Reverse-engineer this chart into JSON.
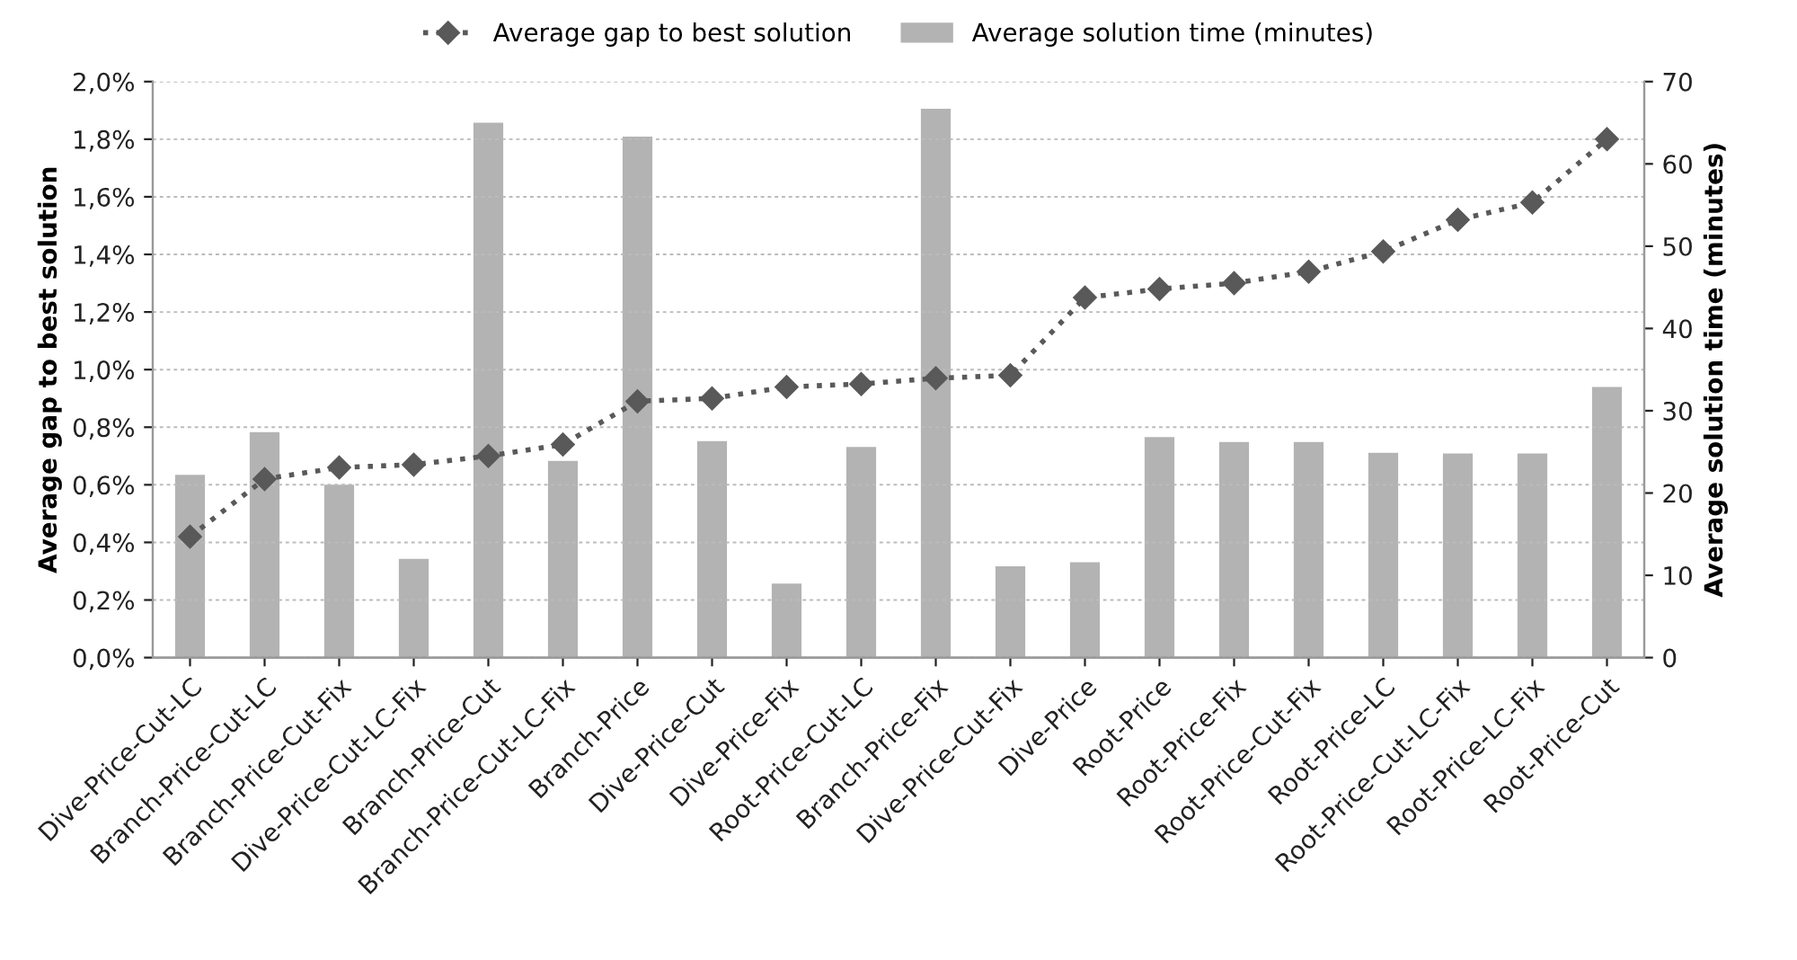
{
  "chart_data": {
    "type": "bar",
    "categories": [
      "Dive-Price-Cut-LC",
      "Branch-Price-Cut-LC",
      "Branch-Price-Cut-Fix",
      "Dive-Price-Cut-LC-Fix",
      "Branch-Price-Cut",
      "Branch-Price-Cut-LC-Fix",
      "Branch-Price",
      "Dive-Price-Cut",
      "Dive-Price-Fix",
      "Root-Price-Cut-LC",
      "Branch-Price-Fix",
      "Dive-Price-Cut-Fix",
      "Dive-Price",
      "Root-Price",
      "Root-Price-Fix",
      "Root-Price-Cut-Fix",
      "Root-Price-LC",
      "Root-Price-Cut-LC-Fix",
      "Root-Price-LC-Fix",
      "Root-Price-Cut"
    ],
    "series": [
      {
        "name": "Average gap to best solution",
        "type": "line",
        "color": "#595959",
        "marker": "diamond",
        "line_style": "dotted",
        "values": [
          0.42,
          0.62,
          0.66,
          0.67,
          0.7,
          0.74,
          0.89,
          0.9,
          0.94,
          0.95,
          0.97,
          0.98,
          1.25,
          1.28,
          1.3,
          1.34,
          1.41,
          1.52,
          1.58,
          1.8
        ]
      },
      {
        "name": "Average solution time (minutes)",
        "axis": "y2",
        "color": "#b3b3b3",
        "values": [
          22.2,
          27.4,
          21.0,
          12.0,
          65.0,
          23.9,
          63.3,
          26.3,
          9.0,
          25.6,
          66.7,
          11.1,
          11.6,
          26.8,
          26.2,
          26.2,
          24.9,
          24.8,
          24.8,
          32.9
        ]
      }
    ],
    "ylabel": "Average gap to best solution",
    "y2label": "Average solution time (minutes)",
    "ylim": [
      0,
      2.0
    ],
    "yticks": [
      {
        "value": 0,
        "label": "0,0%"
      },
      {
        "value": 0.2,
        "label": "0,2%"
      },
      {
        "value": 0.4,
        "label": "0,4%"
      },
      {
        "value": 0.6,
        "label": "0,6%"
      },
      {
        "value": 0.8,
        "label": "0,8%"
      },
      {
        "value": 1.0,
        "label": "1,0%"
      },
      {
        "value": 1.2,
        "label": "1,2%"
      },
      {
        "value": 1.4,
        "label": "1,4%"
      },
      {
        "value": 1.6,
        "label": "1,6%"
      },
      {
        "value": 1.8,
        "label": "1,8%"
      },
      {
        "value": 2.0,
        "label": "2,0%"
      }
    ],
    "y2lim": [
      0,
      70
    ],
    "y2ticks": [
      0,
      10,
      20,
      30,
      40,
      50,
      60,
      70
    ],
    "grid": "y",
    "legend": "top"
  }
}
